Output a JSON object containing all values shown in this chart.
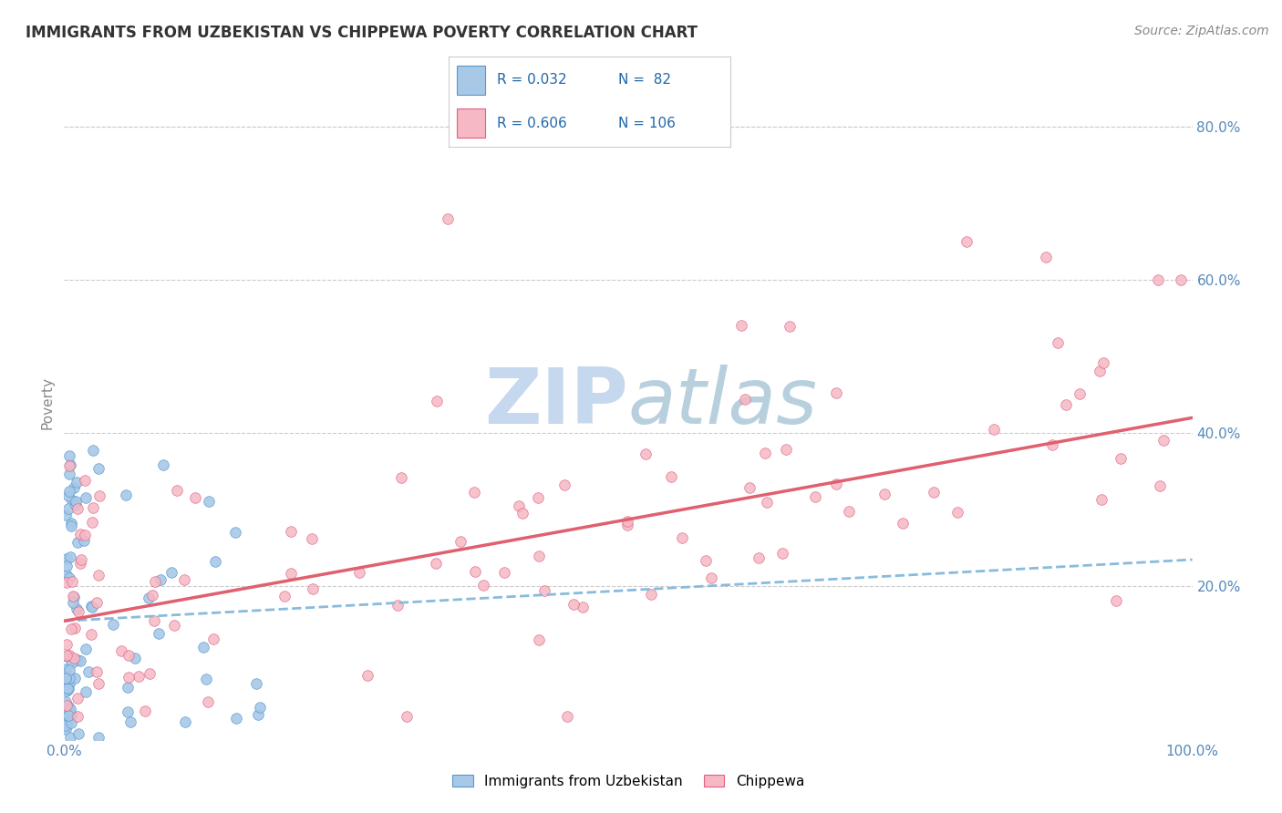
{
  "title": "IMMIGRANTS FROM UZBEKISTAN VS CHIPPEWA POVERTY CORRELATION CHART",
  "source": "Source: ZipAtlas.com",
  "ylabel": "Poverty",
  "xlim": [
    0.0,
    1.0
  ],
  "ylim": [
    0.0,
    0.88
  ],
  "x_ticks": [
    0.0,
    0.2,
    0.4,
    0.6,
    0.8,
    1.0
  ],
  "x_tick_labels": [
    "0.0%",
    "",
    "",
    "",
    "",
    "100.0%"
  ],
  "y_ticks": [
    0.2,
    0.4,
    0.6,
    0.8
  ],
  "y_tick_labels": [
    "20.0%",
    "40.0%",
    "60.0%",
    "80.0%"
  ],
  "color_blue": "#a8c8e8",
  "color_blue_edge": "#5599cc",
  "color_blue_solid": "#3366aa",
  "color_pink": "#f5b8c4",
  "color_pink_edge": "#e06080",
  "color_pink_solid": "#e05070",
  "trendline_blue_color": "#88bbdd",
  "trendline_pink_color": "#e06070",
  "watermark_color": "#c5d8ee",
  "blue_trend_y0": 0.155,
  "blue_trend_y1": 0.235,
  "pink_trend_y0": 0.155,
  "pink_trend_y1": 0.42,
  "legend_r1": "R = 0.032",
  "legend_n1": "N =  82",
  "legend_r2": "R = 0.606",
  "legend_n2": "N = 106",
  "bottom_label1": "Immigrants from Uzbekistan",
  "bottom_label2": "Chippewa"
}
